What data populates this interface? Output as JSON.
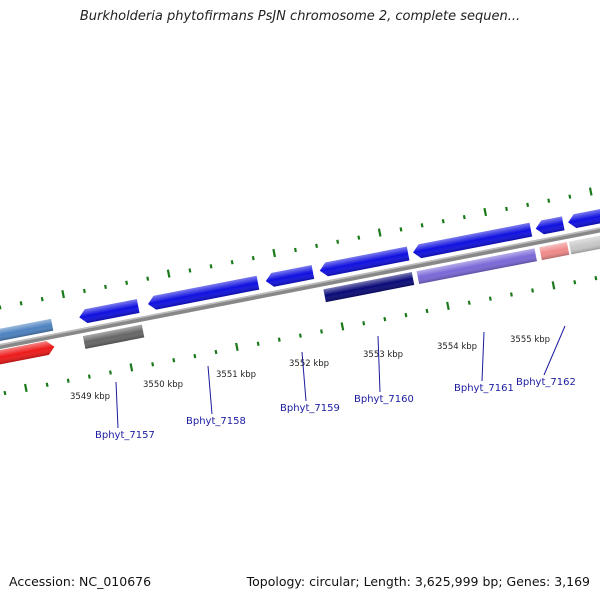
{
  "title": "Burkholderia phytofirmans PsJN chromosome 2, complete sequen...",
  "footer": {
    "accession": "Accession: NC_010676",
    "topology": "Topology: circular; Length: 3,625,999 bp; Genes: 3,169"
  },
  "kbp_labels": [
    "3549 kbp",
    "3550 kbp",
    "3551 kbp",
    "3552 kbp",
    "3553 kbp",
    "3554 kbp",
    "3555 kbp"
  ],
  "gene_labels": [
    "Bphyt_7157",
    "Bphyt_7158",
    "Bphyt_7159",
    "Bphyt_7160",
    "Bphyt_7161",
    "Bphyt_7162"
  ],
  "colors": {
    "gene_blue": "#1010e0",
    "gene_navy": "#0a0a78",
    "gene_purple": "#7b68d8",
    "gene_gray": "#666666",
    "gene_red": "#ee1a1a",
    "gene_steelblue": "#4d82c0",
    "gene_pink": "#f08a8a",
    "gene_lightgray": "#c8c8c8",
    "tick_green": "#1a7a1a",
    "label_blue": "#1a1aa0",
    "backbone_gray": "#888888"
  }
}
